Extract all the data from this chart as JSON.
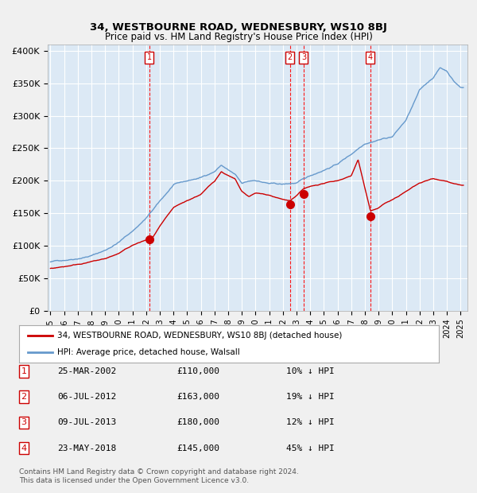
{
  "title": "34, WESTBOURNE ROAD, WEDNESBURY, WS10 8BJ",
  "subtitle": "Price paid vs. HM Land Registry's House Price Index (HPI)",
  "legend_entry1": "34, WESTBOURNE ROAD, WEDNESBURY, WS10 8BJ (detached house)",
  "legend_entry2": "HPI: Average price, detached house, Walsall",
  "hpi_color": "#6699cc",
  "price_color": "#cc0000",
  "bg_color": "#dce9f5",
  "grid_color": "#ffffff",
  "dashed_color": "#ff0000",
  "transactions": [
    {
      "label": "1",
      "date": "2002-03-25",
      "price": 110000
    },
    {
      "label": "2",
      "date": "2012-07-06",
      "price": 163000
    },
    {
      "label": "3",
      "date": "2013-07-09",
      "price": 180000
    },
    {
      "label": "4",
      "date": "2018-05-23",
      "price": 145000
    }
  ],
  "table_rows": [
    {
      "num": "1",
      "date": "25-MAR-2002",
      "price": "£110,000",
      "note": "10% ↓ HPI"
    },
    {
      "num": "2",
      "date": "06-JUL-2012",
      "price": "£163,000",
      "note": "19% ↓ HPI"
    },
    {
      "num": "3",
      "date": "09-JUL-2013",
      "price": "£180,000",
      "note": "12% ↓ HPI"
    },
    {
      "num": "4",
      "date": "23-MAY-2018",
      "price": "£145,000",
      "note": "45% ↓ HPI"
    }
  ],
  "footer": "Contains HM Land Registry data © Crown copyright and database right 2024.\nThis data is licensed under the Open Government Licence v3.0.",
  "ylim": [
    0,
    400000
  ],
  "yticks": [
    0,
    50000,
    100000,
    150000,
    200000,
    250000,
    300000,
    350000,
    400000
  ]
}
